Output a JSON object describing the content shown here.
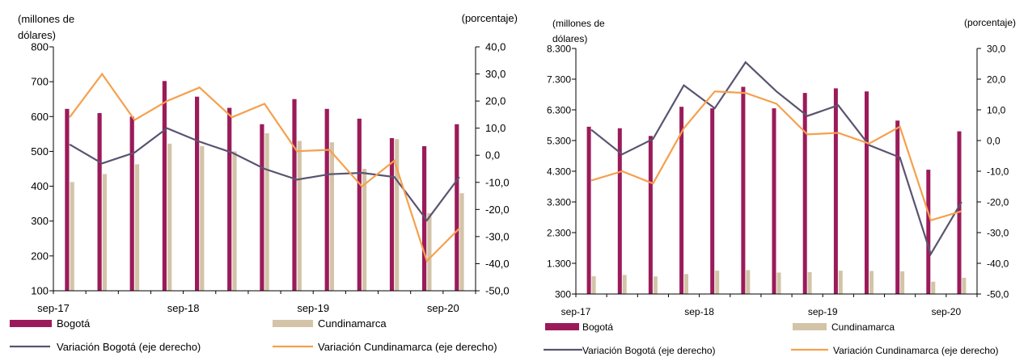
{
  "chart_data": [
    {
      "type": "bar",
      "ylabel_left_lines": [
        "(millones de",
        "dólares)"
      ],
      "ylabel_right": "(porcentaje)",
      "ylim_left": [
        100,
        800
      ],
      "yticks_left": [
        100,
        200,
        300,
        400,
        500,
        600,
        700,
        800
      ],
      "yticks_left_labels": [
        "100",
        "200",
        "300",
        "400",
        "500",
        "600",
        "700",
        "800"
      ],
      "ylim_right": [
        -50,
        40
      ],
      "yticks_right": [
        -50,
        -40,
        -30,
        -20,
        -10,
        0,
        10,
        20,
        30,
        40
      ],
      "yticks_right_labels": [
        "-50,0",
        "-40,0",
        "-30,0",
        "-20,0",
        "-10,0",
        "0,0",
        "10,0",
        "20,0",
        "30,0",
        "40,0"
      ],
      "x_labels": [
        {
          "index": 0,
          "text": "sep-17"
        },
        {
          "index": 4,
          "text": "sep-18"
        },
        {
          "index": 8,
          "text": "sep-19"
        },
        {
          "index": 12,
          "text": "sep-20"
        }
      ],
      "periods": 13,
      "series": [
        {
          "name": "Bogotá",
          "kind": "bar",
          "axis": "left",
          "color": "#9B1B5A",
          "values": [
            622,
            610,
            600,
            702,
            657,
            625,
            578,
            650,
            622,
            594,
            538,
            515,
            578
          ]
        },
        {
          "name": "Cundinamarca",
          "kind": "bar",
          "axis": "left",
          "color": "#D3C4A8",
          "values": [
            412,
            435,
            463,
            522,
            515,
            500,
            552,
            530,
            526,
            450,
            535,
            323,
            380
          ]
        },
        {
          "name": "Variación Bogotá (eje derecho)",
          "kind": "line",
          "axis": "right",
          "color": "#5A5370",
          "values": [
            4,
            -3,
            1,
            10,
            5,
            1,
            -5,
            -9,
            -7,
            -6.5,
            -8,
            -24,
            -8
          ]
        },
        {
          "name": "Variación Cundinamarca (eje derecho)",
          "kind": "line",
          "axis": "right",
          "color": "#F5A04D",
          "values": [
            14,
            30,
            13,
            20,
            25,
            14,
            19,
            1.5,
            2,
            -11.5,
            -2,
            -39,
            -27
          ]
        }
      ],
      "legend": "bottom"
    },
    {
      "type": "bar",
      "ylabel_left_lines": [
        "(millones de",
        "dólares)"
      ],
      "ylabel_right": "(porcentaje)",
      "ylim_left": [
        300,
        8300
      ],
      "yticks_left": [
        300,
        1300,
        2300,
        3300,
        4300,
        5300,
        6300,
        7300,
        8300
      ],
      "yticks_left_labels": [
        "300",
        "1.300",
        "2.300",
        "3.300",
        "4.300",
        "5.300",
        "6.300",
        "7.300",
        "8.300"
      ],
      "ylim_right": [
        -50,
        30
      ],
      "yticks_right": [
        -50,
        -40,
        -30,
        -20,
        -10,
        0,
        10,
        20,
        30
      ],
      "yticks_right_labels": [
        "-50,0",
        "-40,0",
        "-30,0",
        "-20,0",
        "-10,0",
        "0,0",
        "10,0",
        "20,0",
        "30,0"
      ],
      "x_labels": [
        {
          "index": 0,
          "text": "sep-17"
        },
        {
          "index": 4,
          "text": "sep-18"
        },
        {
          "index": 8,
          "text": "sep-19"
        },
        {
          "index": 12,
          "text": "sep-20"
        }
      ],
      "periods": 13,
      "series": [
        {
          "name": "Bogotá",
          "kind": "bar",
          "axis": "left",
          "color": "#9B1B5A",
          "values": [
            5750,
            5700,
            5450,
            6400,
            6350,
            7050,
            6350,
            6850,
            7000,
            6900,
            5950,
            4350,
            5600
          ]
        },
        {
          "name": "Cundinamarca",
          "kind": "bar",
          "axis": "left",
          "color": "#D3C4A8",
          "values": [
            880,
            920,
            870,
            950,
            1060,
            1080,
            1000,
            1010,
            1060,
            1050,
            1040,
            700,
            830
          ]
        },
        {
          "name": "Variación Bogotá (eje derecho)",
          "kind": "line",
          "axis": "right",
          "color": "#5A5370",
          "values": [
            3.5,
            -4.5,
            0.5,
            18,
            10.5,
            25.5,
            16,
            8,
            11.5,
            -1.5,
            -5.5,
            -37,
            -20
          ]
        },
        {
          "name": "Variación Cundinamarca (eje derecho)",
          "kind": "line",
          "axis": "right",
          "color": "#F5A04D",
          "values": [
            -13,
            -10,
            -14,
            4,
            16,
            15.5,
            12,
            2,
            2.5,
            -1,
            4.5,
            -26,
            -23
          ]
        }
      ],
      "legend": "bottom"
    }
  ]
}
